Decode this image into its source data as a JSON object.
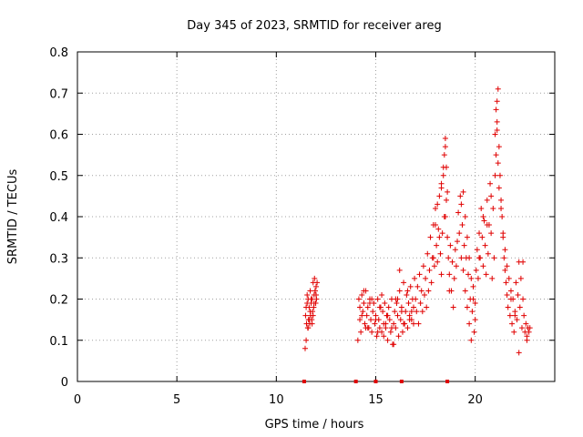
{
  "chart_data": {
    "type": "scatter",
    "title": "Day 345 of 2023, SRMTID for receiver areg",
    "xlabel": "GPS time / hours",
    "ylabel": "SRMTID / TECUs",
    "xlim": [
      0,
      24
    ],
    "ylim": [
      0,
      0.8
    ],
    "xticks": [
      0,
      5,
      10,
      15,
      20
    ],
    "xtick_labels": [
      "0",
      "5",
      "10",
      "15",
      "20"
    ],
    "yticks": [
      0,
      0.1,
      0.2,
      0.3,
      0.4,
      0.5,
      0.6,
      0.7,
      0.8
    ],
    "ytick_labels": [
      "0",
      "0.1",
      "0.2",
      "0.3",
      "0.4",
      "0.5",
      "0.6",
      "0.7",
      "0.8"
    ],
    "grid": true,
    "marker": "+",
    "marker_color": "#e00000",
    "zero_markers_x": [
      11.4,
      14.0,
      15.0,
      16.3,
      18.6
    ],
    "series": [
      {
        "name": "SRMTID",
        "x": [
          11.45,
          11.5,
          11.52,
          11.55,
          11.58,
          11.6,
          11.62,
          11.65,
          11.68,
          11.7,
          11.72,
          11.75,
          11.78,
          11.8,
          11.82,
          11.85,
          11.88,
          11.9,
          11.92,
          11.95,
          11.98,
          12.0,
          12.02,
          12.05,
          11.47,
          11.5,
          11.6,
          11.7,
          11.8,
          11.9,
          12.0,
          11.55,
          11.65,
          11.75,
          11.85,
          11.95,
          14.1,
          14.15,
          14.2,
          14.25,
          14.3,
          14.35,
          14.4,
          14.45,
          14.5,
          14.55,
          14.6,
          14.65,
          14.7,
          14.75,
          14.8,
          14.85,
          14.9,
          14.95,
          15.0,
          15.05,
          15.1,
          15.15,
          15.2,
          15.25,
          15.3,
          15.35,
          15.4,
          15.45,
          15.5,
          15.55,
          15.6,
          15.65,
          15.7,
          15.75,
          15.8,
          15.85,
          15.9,
          15.95,
          16.0,
          16.05,
          16.1,
          16.15,
          16.2,
          16.25,
          16.3,
          16.35,
          16.4,
          16.45,
          16.5,
          16.55,
          16.6,
          16.65,
          16.7,
          16.75,
          16.8,
          16.85,
          16.9,
          16.95,
          14.2,
          14.4,
          14.6,
          14.8,
          15.0,
          15.2,
          15.4,
          15.6,
          15.8,
          16.0,
          16.2,
          16.4,
          16.6,
          16.8,
          14.3,
          14.7,
          15.1,
          15.5,
          15.9,
          16.3,
          16.7,
          14.5,
          15.3,
          16.1,
          16.9,
          17.0,
          17.05,
          17.1,
          17.15,
          17.2,
          17.25,
          17.3,
          17.35,
          17.4,
          17.45,
          17.5,
          17.55,
          17.6,
          17.65,
          17.7,
          17.75,
          17.8,
          17.85,
          17.9,
          17.95,
          18.0,
          18.05,
          18.1,
          18.15,
          18.2,
          18.25,
          18.3,
          18.35,
          18.4,
          18.45,
          18.5,
          18.55,
          18.6,
          18.65,
          18.7,
          18.75,
          18.8,
          18.85,
          18.9,
          18.95,
          19.0,
          17.9,
          18.0,
          18.1,
          18.2,
          18.3,
          18.4,
          18.45,
          18.5,
          18.55,
          18.6,
          18.3,
          18.5,
          18.7,
          19.05,
          19.1,
          19.15,
          19.2,
          19.25,
          19.3,
          19.35,
          19.4,
          19.45,
          19.5,
          19.55,
          19.6,
          19.65,
          19.7,
          19.75,
          19.8,
          19.85,
          19.9,
          19.95,
          20.0,
          20.05,
          20.1,
          20.15,
          20.2,
          20.25,
          20.3,
          20.35,
          20.4,
          20.45,
          20.5,
          20.55,
          20.6,
          20.65,
          20.7,
          20.75,
          20.8,
          20.85,
          20.9,
          20.95,
          19.3,
          19.4,
          19.5,
          19.6,
          19.7,
          19.8,
          19.9,
          20.0,
          20.2,
          20.4,
          20.6,
          20.8,
          21.0,
          21.05,
          21.1,
          21.15,
          21.2,
          21.25,
          21.3,
          21.35,
          21.4,
          21.45,
          21.5,
          21.55,
          21.6,
          21.65,
          21.7,
          21.75,
          21.8,
          21.85,
          21.9,
          21.95,
          22.0,
          22.05,
          22.1,
          22.15,
          22.2,
          22.25,
          22.3,
          22.35,
          22.4,
          22.45,
          22.5,
          22.55,
          22.6,
          22.65,
          22.7,
          22.75,
          21.0,
          21.05,
          21.1,
          21.1,
          21.15,
          21.2,
          21.3,
          21.4,
          21.5,
          21.6,
          21.8,
          22.0,
          22.2,
          22.4,
          22.6
        ],
        "y": [
          0.08,
          0.1,
          0.14,
          0.21,
          0.13,
          0.2,
          0.15,
          0.18,
          0.14,
          0.22,
          0.16,
          0.19,
          0.15,
          0.2,
          0.17,
          0.24,
          0.18,
          0.21,
          0.25,
          0.22,
          0.19,
          0.23,
          0.2,
          0.24,
          0.16,
          0.18,
          0.13,
          0.17,
          0.14,
          0.19,
          0.21,
          0.19,
          0.15,
          0.2,
          0.16,
          0.22,
          0.1,
          0.2,
          0.15,
          0.12,
          0.21,
          0.17,
          0.19,
          0.14,
          0.22,
          0.16,
          0.18,
          0.13,
          0.2,
          0.15,
          0.12,
          0.17,
          0.19,
          0.14,
          0.16,
          0.11,
          0.2,
          0.15,
          0.13,
          0.18,
          0.12,
          0.17,
          0.14,
          0.19,
          0.13,
          0.16,
          0.1,
          0.18,
          0.15,
          0.12,
          0.2,
          0.09,
          0.14,
          0.17,
          0.13,
          0.19,
          0.16,
          0.11,
          0.22,
          0.15,
          0.18,
          0.12,
          0.24,
          0.14,
          0.17,
          0.21,
          0.13,
          0.19,
          0.16,
          0.23,
          0.15,
          0.2,
          0.14,
          0.25,
          0.18,
          0.22,
          0.13,
          0.2,
          0.15,
          0.18,
          0.11,
          0.16,
          0.13,
          0.2,
          0.27,
          0.14,
          0.22,
          0.17,
          0.16,
          0.19,
          0.12,
          0.14,
          0.09,
          0.17,
          0.15,
          0.13,
          0.21,
          0.2,
          0.18,
          0.2,
          0.17,
          0.23,
          0.14,
          0.26,
          0.19,
          0.22,
          0.17,
          0.28,
          0.21,
          0.25,
          0.18,
          0.31,
          0.22,
          0.27,
          0.35,
          0.24,
          0.3,
          0.38,
          0.28,
          0.42,
          0.33,
          0.29,
          0.37,
          0.45,
          0.31,
          0.48,
          0.36,
          0.52,
          0.4,
          0.57,
          0.44,
          0.35,
          0.3,
          0.26,
          0.33,
          0.22,
          0.29,
          0.18,
          0.25,
          0.32,
          0.3,
          0.38,
          0.43,
          0.35,
          0.47,
          0.5,
          0.55,
          0.59,
          0.52,
          0.46,
          0.26,
          0.4,
          0.22,
          0.28,
          0.34,
          0.41,
          0.36,
          0.45,
          0.3,
          0.38,
          0.27,
          0.33,
          0.22,
          0.3,
          0.18,
          0.26,
          0.14,
          0.2,
          0.1,
          0.17,
          0.23,
          0.12,
          0.19,
          0.27,
          0.32,
          0.25,
          0.36,
          0.3,
          0.42,
          0.35,
          0.28,
          0.39,
          0.33,
          0.26,
          0.44,
          0.31,
          0.38,
          0.48,
          0.36,
          0.25,
          0.42,
          0.3,
          0.43,
          0.46,
          0.4,
          0.35,
          0.3,
          0.25,
          0.2,
          0.15,
          0.3,
          0.4,
          0.38,
          0.45,
          0.5,
          0.55,
          0.63,
          0.71,
          0.57,
          0.5,
          0.44,
          0.4,
          0.35,
          0.3,
          0.27,
          0.24,
          0.21,
          0.18,
          0.25,
          0.16,
          0.22,
          0.14,
          0.2,
          0.12,
          0.17,
          0.24,
          0.15,
          0.21,
          0.29,
          0.18,
          0.25,
          0.13,
          0.2,
          0.16,
          0.12,
          0.14,
          0.11,
          0.13,
          0.12,
          0.13,
          0.6,
          0.66,
          0.68,
          0.61,
          0.53,
          0.47,
          0.42,
          0.36,
          0.32,
          0.28,
          0.2,
          0.16,
          0.07,
          0.29,
          0.1
        ]
      }
    ]
  }
}
